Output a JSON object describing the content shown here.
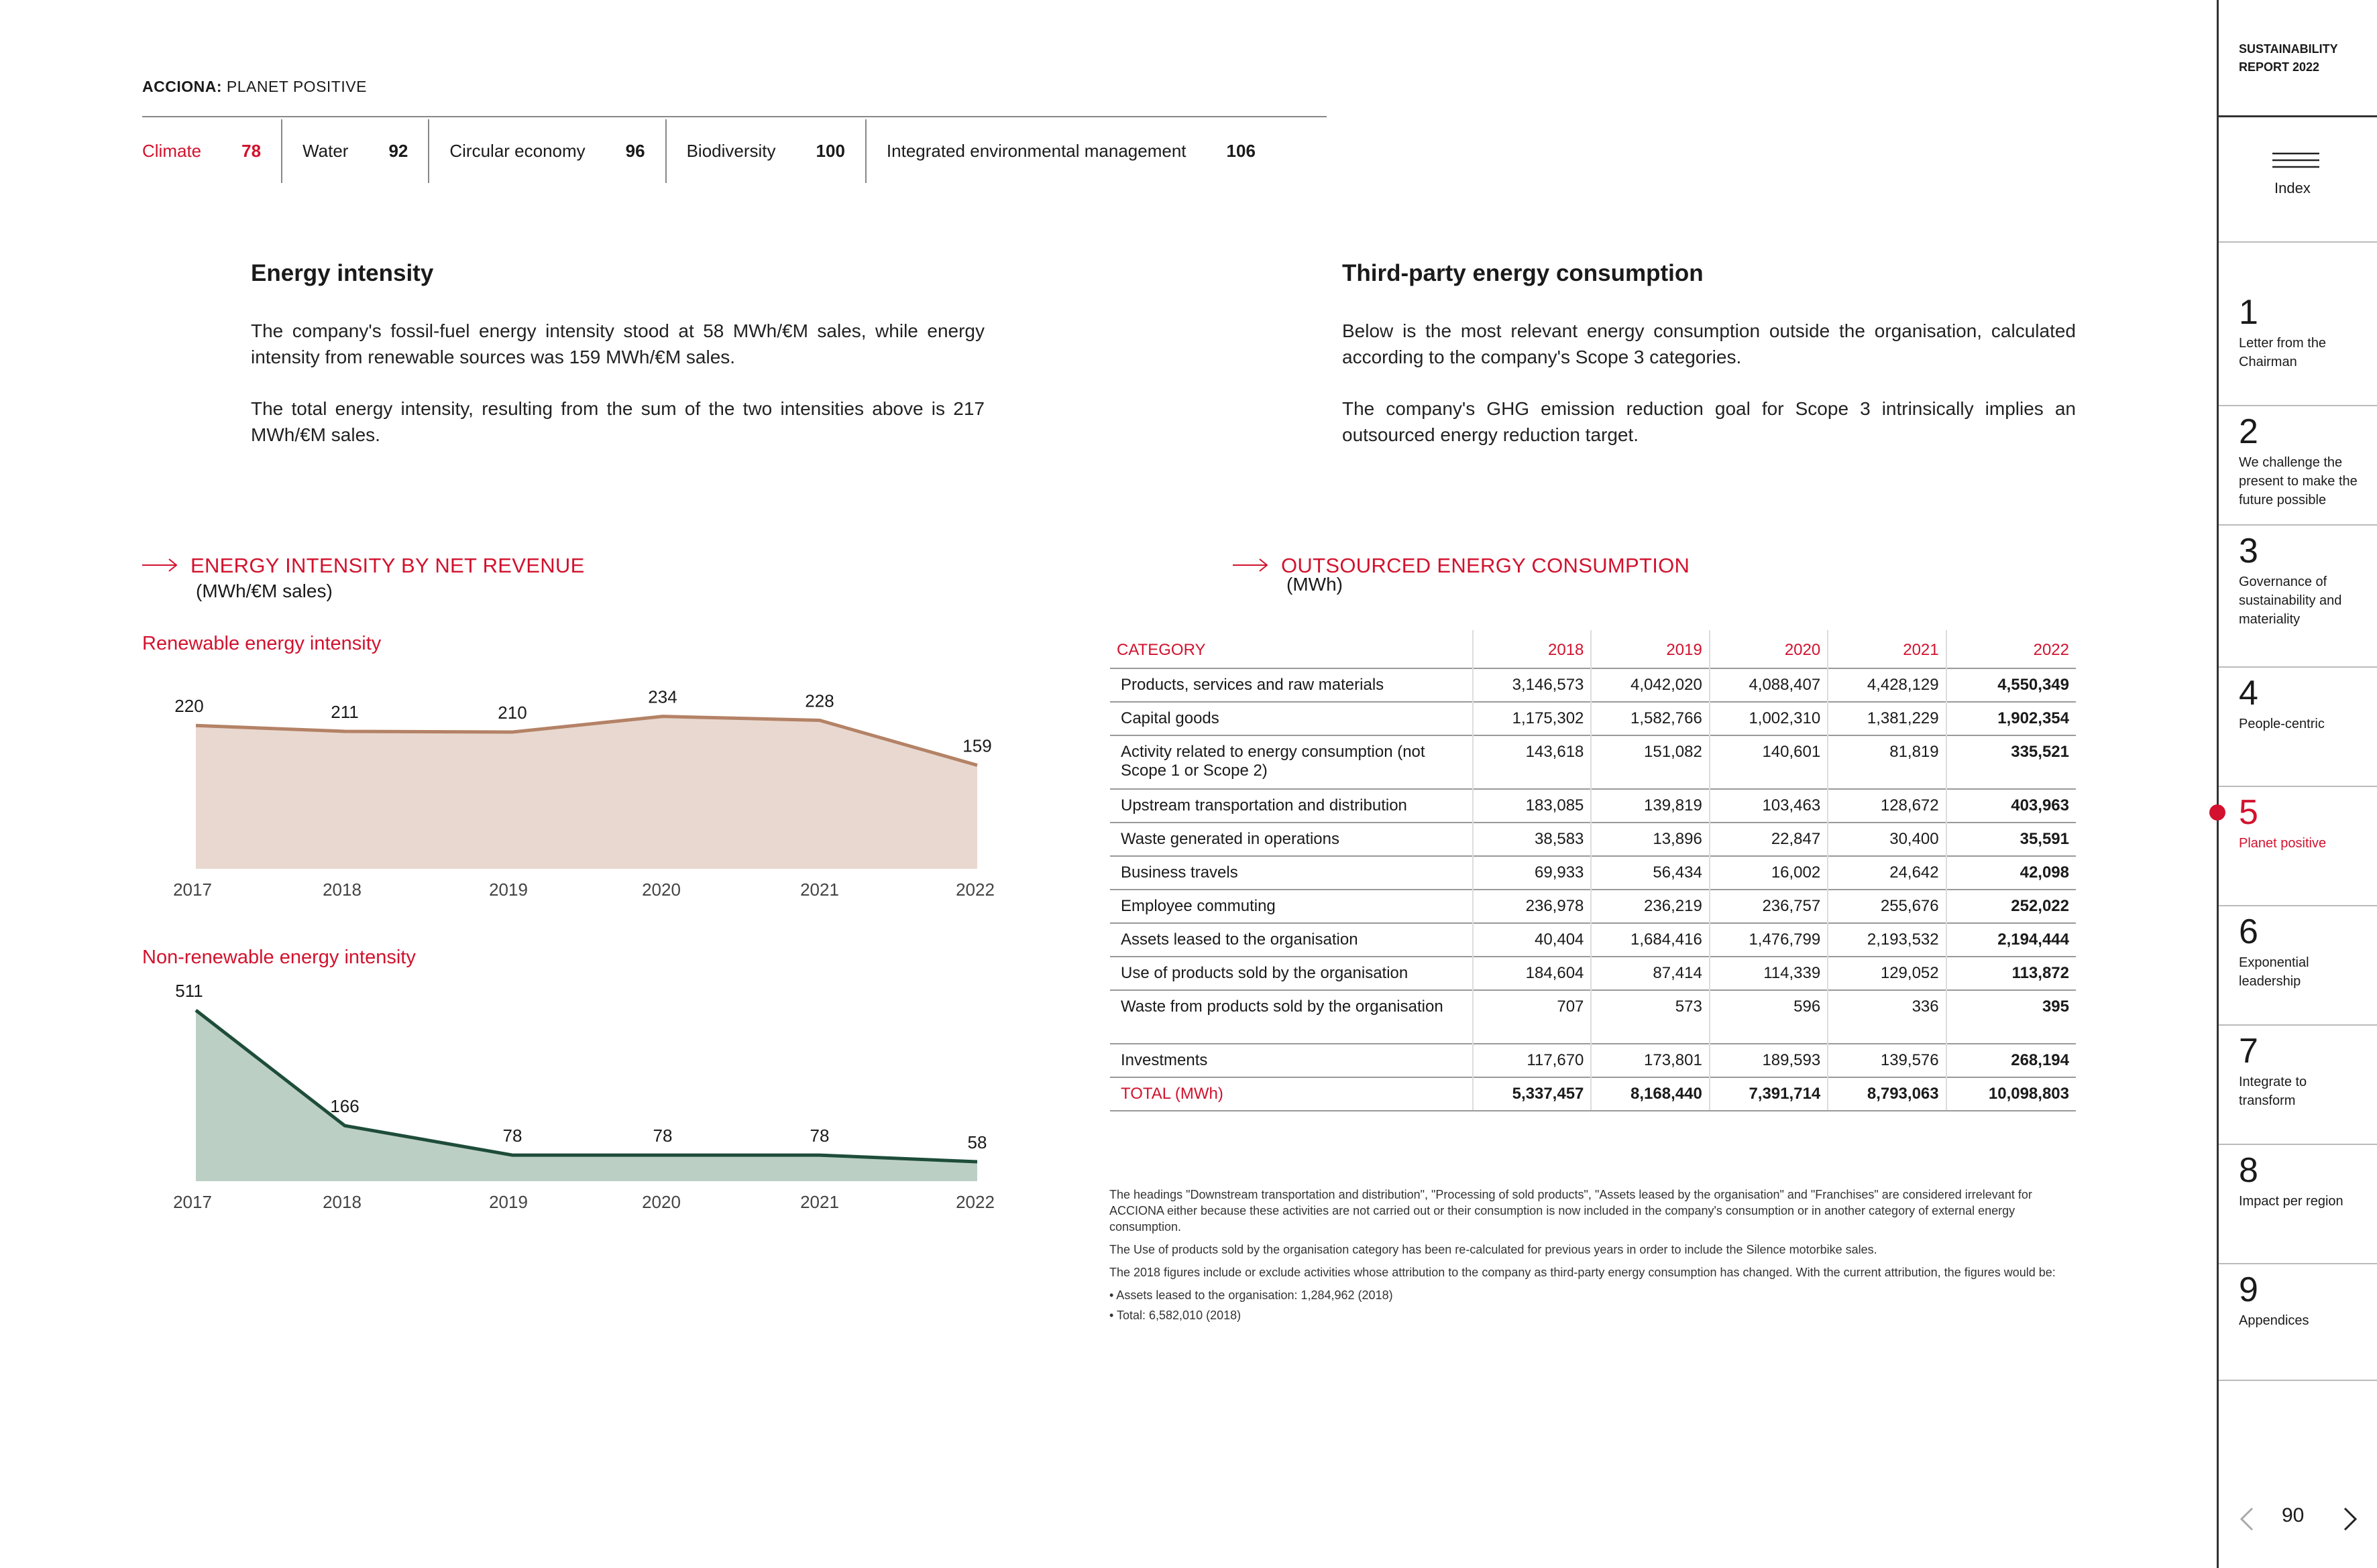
{
  "header": {
    "brand_bold": "ACCIONA:",
    "brand_rest": "PLANET POSITIVE",
    "chapters": [
      {
        "label": "Climate",
        "page": "78"
      },
      {
        "label": "Water",
        "page": "92"
      },
      {
        "label": "Circular economy",
        "page": "96"
      },
      {
        "label": "Biodiversity",
        "page": "100"
      },
      {
        "label": "Integrated environmental management",
        "page": "106"
      }
    ]
  },
  "left": {
    "title": "Energy intensity",
    "p1": "The company's fossil-fuel energy intensity stood at 58 MWh/€M sales, while energy intensity from renewable sources was 159 MWh/€M sales.",
    "p2": "The total energy intensity, resulting from the sum of the two intensities above is 217 MWh/€M sales."
  },
  "right": {
    "title": "Third-party energy consumption",
    "p1": "Below is the most relevant energy consumption outside the organisation, calculated according to the company's Scope 3 categories.",
    "p2": "The company's GHG emission reduction goal for Scope 3 intrinsically implies an outsourced energy reduction target."
  },
  "intensity_section": {
    "title": "ENERGY INTENSITY BY NET REVENUE",
    "unit": "(MWh/€M sales)"
  },
  "outsourced_section": {
    "title": "OUTSOURCED ENERGY CONSUMPTION",
    "unit": "(MWh)"
  },
  "chart_data": [
    {
      "type": "area",
      "title": "Renewable energy intensity",
      "x": [
        "2017",
        "2018",
        "2019",
        "2020",
        "2021",
        "2022"
      ],
      "values": [
        220,
        211,
        210,
        234,
        228,
        159
      ],
      "color": "#b48266",
      "fill": "#e8d8d0"
    },
    {
      "type": "area",
      "title": "Non-renewable energy intensity",
      "x": [
        "2017",
        "2018",
        "2019",
        "2020",
        "2021",
        "2022"
      ],
      "values": [
        511,
        166,
        78,
        78,
        78,
        58
      ],
      "color": "#1e4d3a",
      "fill": "#bccfc5"
    }
  ],
  "table": {
    "headers": [
      "CATEGORY",
      "2018",
      "2019",
      "2020",
      "2021",
      "2022"
    ],
    "rows": [
      [
        "Products, services and raw materials",
        "3,146,573",
        "4,042,020",
        "4,088,407",
        "4,428,129",
        "4,550,349"
      ],
      [
        "Capital goods",
        "1,175,302",
        "1,582,766",
        "1,002,310",
        "1,381,229",
        "1,902,354"
      ],
      [
        "Activity related to energy consumption (not Scope 1 or Scope 2)",
        "143,618",
        "151,082",
        "140,601",
        "81,819",
        "335,521"
      ],
      [
        "Upstream transportation and distribution",
        "183,085",
        "139,819",
        "103,463",
        "128,672",
        "403,963"
      ],
      [
        "Waste generated in operations",
        "38,583",
        "13,896",
        "22,847",
        "30,400",
        "35,591"
      ],
      [
        "Business travels",
        "69,933",
        "56,434",
        "16,002",
        "24,642",
        "42,098"
      ],
      [
        "Employee commuting",
        "236,978",
        "236,219",
        "236,757",
        "255,676",
        "252,022"
      ],
      [
        "Assets leased to the organisation",
        "40,404",
        "1,684,416",
        "1,476,799",
        "2,193,532",
        "2,194,444"
      ],
      [
        "Use of products sold by the organisation",
        "184,604",
        "87,414",
        "114,339",
        "129,052",
        "113,872"
      ],
      [
        "Waste from products sold by the organisation",
        "707",
        "573",
        "596",
        "336",
        "395"
      ],
      [
        "Investments",
        "117,670",
        "173,801",
        "189,593",
        "139,576",
        "268,194"
      ]
    ],
    "total": [
      "TOTAL (MWh)",
      "5,337,457",
      "8,168,440",
      "7,391,714",
      "8,793,063",
      "10,098,803"
    ]
  },
  "notes": [
    "The headings \"Downstream transportation and distribution\", \"Processing of sold products\", \"Assets leased by the organisation\" and \"Franchises\" are considered irrelevant for ACCIONA either because these activities are not carried out or their consumption is now included in the company's consumption or in another category of external energy consumption.",
    "The Use of products sold by the organisation category has been re-calculated for previous years in order to include the Silence motorbike sales.",
    "The 2018 figures include or exclude activities whose attribution to the company as third-party energy consumption has changed. With the current attribution, the figures would be:",
    "• Assets leased to the organisation: 1,284,962 (2018)",
    "• Total: 6,582,010 (2018)"
  ],
  "sidebar": {
    "report_line1": "SUSTAINABILITY",
    "report_line2": "REPORT 2022",
    "index_label": "Index",
    "items": [
      {
        "num": "1",
        "label": "Letter from the Chairman"
      },
      {
        "num": "2",
        "label": "We challenge the present to make the future possible"
      },
      {
        "num": "3",
        "label": "Governance of sustainability and materiality"
      },
      {
        "num": "4",
        "label": "People-centric"
      },
      {
        "num": "5",
        "label": "Planet positive"
      },
      {
        "num": "6",
        "label": "Exponential leadership"
      },
      {
        "num": "7",
        "label": "Integrate to transform"
      },
      {
        "num": "8",
        "label": "Impact per region"
      },
      {
        "num": "9",
        "label": "Appendices"
      }
    ],
    "page_number": "90"
  }
}
